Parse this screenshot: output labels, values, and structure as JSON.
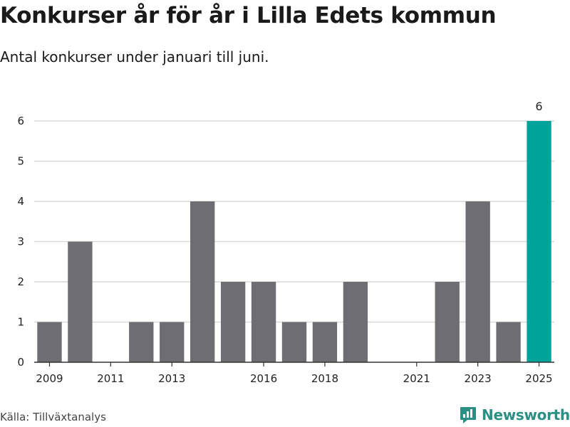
{
  "title": "Konkurser år för år i Lilla Edets kommun",
  "subtitle": "Antal konkurser under januari till juni.",
  "source": "Källa: Tillväxtanalys",
  "brand": "Newsworthy",
  "colors": {
    "bar": "#6e6d73",
    "highlight": "#00a39a",
    "grid": "#d9d9d9",
    "axis": "#333333"
  },
  "chart_data": {
    "type": "bar",
    "title": "",
    "xlabel": "",
    "ylabel": "",
    "x": [
      2009,
      2010,
      2011,
      2012,
      2013,
      2014,
      2015,
      2016,
      2017,
      2018,
      2019,
      2020,
      2021,
      2022,
      2023,
      2024,
      2025
    ],
    "values": [
      1,
      3,
      0,
      1,
      1,
      4,
      2,
      2,
      1,
      1,
      2,
      0,
      0,
      2,
      4,
      1,
      6
    ],
    "ylim": [
      0,
      6
    ],
    "yticks": [
      0,
      1,
      2,
      3,
      4,
      5,
      6
    ],
    "xtick_labels": [
      "2009",
      "2011",
      "2013",
      "2016",
      "2018",
      "2021",
      "2023",
      "2025"
    ],
    "highlight": 2025,
    "data_labels": [
      {
        "x": 2025,
        "text": "6"
      }
    ],
    "grid": true
  }
}
